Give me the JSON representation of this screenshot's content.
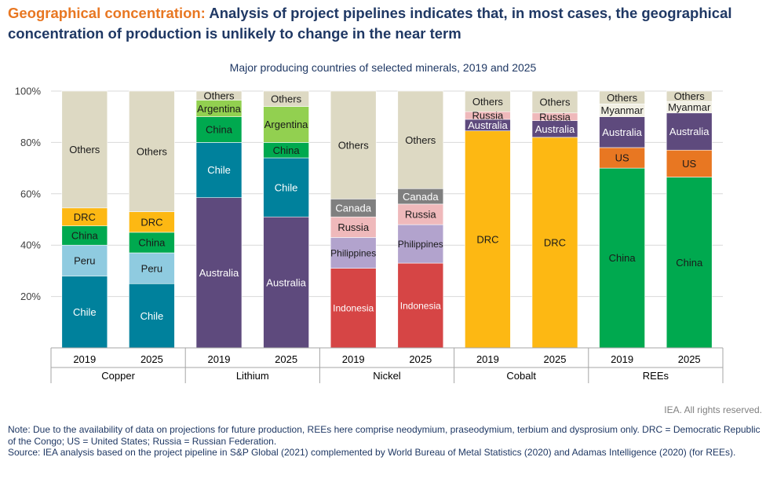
{
  "header": {
    "accent_title": "Geographical concentration:",
    "title": "Analysis of project pipelines indicates that, in most cases, the geographical concentration of production is unlikely to change in the near term"
  },
  "chart_subtitle": "Major producing countries of selected minerals, 2019 and 2025",
  "footer": {
    "rights": "IEA. All rights reserved.",
    "note": "Note: Due to the availability of data on projections for future production, REEs here comprise neodymium, praseodymium, terbium and dysprosium only. DRC = Democratic Republic of the Congo; US = United States; Russia = Russian Federation.",
    "source": "Source: IEA analysis based on the project pipeline in S&P Global (2021) complemented by World Bureau of Metal Statistics (2020) and Adamas Intelligence (2020) (for REEs)."
  },
  "colors": {
    "Others": "#ddd9c3",
    "Chile": "#00819c",
    "Peru": "#8fcbe0",
    "China": "#00a94f",
    "DRC": "#fdb813",
    "Australia": "#5e4a7d",
    "Argentina": "#92d050",
    "Indonesia": "#d64545",
    "Philippines": "#b2a3cd",
    "Russia": "#efb9bb",
    "Canada": "#7f7f7f",
    "US": "#e87722",
    "Myanmar": "#f2f0e4",
    "axis": "#a6a6a6",
    "grid": "#d9d9d9"
  },
  "chart_data": {
    "type": "stacked_bar",
    "ylim": [
      0,
      100
    ],
    "y_ticks": [
      "20%",
      "40%",
      "60%",
      "80%",
      "100%"
    ],
    "y_tick_values": [
      20,
      40,
      60,
      80,
      100
    ],
    "groups": [
      {
        "name": "Copper",
        "bars": [
          {
            "year": "2019",
            "segments": [
              {
                "label": "Chile",
                "value": 28
              },
              {
                "label": "Peru",
                "value": 12
              },
              {
                "label": "China",
                "value": 7.5
              },
              {
                "label": "DRC",
                "value": 7
              },
              {
                "label": "Others",
                "value": 45.5
              }
            ]
          },
          {
            "year": "2025",
            "segments": [
              {
                "label": "Chile",
                "value": 25
              },
              {
                "label": "Peru",
                "value": 12
              },
              {
                "label": "China",
                "value": 8
              },
              {
                "label": "DRC",
                "value": 8
              },
              {
                "label": "Others",
                "value": 47
              }
            ]
          }
        ]
      },
      {
        "name": "Lithium",
        "bars": [
          {
            "year": "2019",
            "segments": [
              {
                "label": "Australia",
                "value": 58.5
              },
              {
                "label": "Chile",
                "value": 21.5
              },
              {
                "label": "China",
                "value": 10
              },
              {
                "label": "Argentina",
                "value": 6.5
              },
              {
                "label": "Others",
                "value": 3.5
              }
            ]
          },
          {
            "year": "2025",
            "segments": [
              {
                "label": "Australia",
                "value": 51
              },
              {
                "label": "Chile",
                "value": 23
              },
              {
                "label": "China",
                "value": 6
              },
              {
                "label": "Argentina",
                "value": 14
              },
              {
                "label": "Others",
                "value": 6
              }
            ]
          }
        ]
      },
      {
        "name": "Nickel",
        "bars": [
          {
            "year": "2019",
            "segments": [
              {
                "label": "Indonesia",
                "value": 31
              },
              {
                "label": "Philippines",
                "value": 12
              },
              {
                "label": "Russia",
                "value": 8
              },
              {
                "label": "Canada",
                "value": 7
              },
              {
                "label": "Others",
                "value": 42
              }
            ]
          },
          {
            "year": "2025",
            "segments": [
              {
                "label": "Indonesia",
                "value": 33
              },
              {
                "label": "Philippines",
                "value": 15
              },
              {
                "label": "Russia",
                "value": 8
              },
              {
                "label": "Canada",
                "value": 6
              },
              {
                "label": "Others",
                "value": 38
              }
            ]
          }
        ]
      },
      {
        "name": "Cobalt",
        "bars": [
          {
            "year": "2019",
            "segments": [
              {
                "label": "DRC",
                "value": 84.5
              },
              {
                "label": "Australia",
                "value": 4.5
              },
              {
                "label": "Russia",
                "value": 3
              },
              {
                "label": "Others",
                "value": 8
              }
            ]
          },
          {
            "year": "2025",
            "segments": [
              {
                "label": "DRC",
                "value": 82
              },
              {
                "label": "Australia",
                "value": 6.5
              },
              {
                "label": "Russia",
                "value": 3
              },
              {
                "label": "Others",
                "value": 8.5
              }
            ]
          }
        ]
      },
      {
        "name": "REEs",
        "bars": [
          {
            "year": "2019",
            "segments": [
              {
                "label": "China",
                "value": 70
              },
              {
                "label": "US",
                "value": 8
              },
              {
                "label": "Australia",
                "value": 12
              },
              {
                "label": "Myanmar",
                "value": 5
              },
              {
                "label": "Others",
                "value": 5
              }
            ]
          },
          {
            "year": "2025",
            "segments": [
              {
                "label": "China",
                "value": 66.5
              },
              {
                "label": "US",
                "value": 10.5
              },
              {
                "label": "Australia",
                "value": 14.5
              },
              {
                "label": "Myanmar",
                "value": 4.5
              },
              {
                "label": "Others",
                "value": 4
              }
            ]
          }
        ]
      }
    ]
  }
}
